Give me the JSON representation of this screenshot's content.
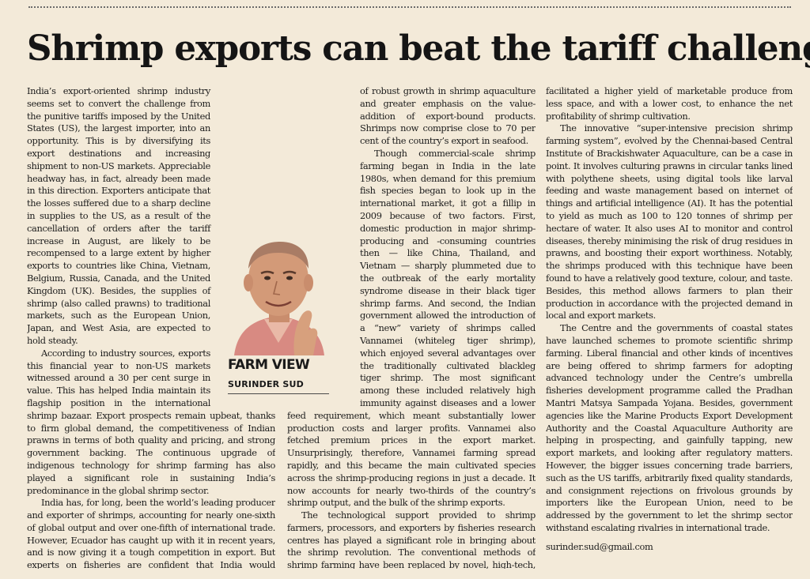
{
  "headline": "Shrimp exports can beat the tariff challenge",
  "column": {
    "name": "FARM VIEW",
    "author": "SURINDER SUD"
  },
  "col1": [
    "India’s export-oriented shrimp industry seems set to convert the challenge from the punitive tariffs imposed by the United States (US), the largest importer, into an opportunity. This is by diversifying its export destinations and increasing shipment to non-US markets. Appreciable headway has, in fact, already been made in this direction. Exporters anticipate that the losses suffered due to a sharp decline in supplies to the US, as a result of the cancellation of orders after the tariff increase in August, are likely to be recompensed to a large extent by higher exports to countries like China, Vietnam, Belgium, Russia, Canada, and the United Kingdom (UK). Besides, the supplies of shrimp (also called prawns) to traditional markets, such as the European Union, Japan, and West Asia, are expected to hold steady.",
    "According to industry sources, exports this financial year to non-US markets witnessed around a 30 per cent surge in value. This has helped India maintain its flagship position in the international shrimp bazaar. Export prospects remain upbeat, thanks to firm global demand, the competitiveness of Indian prawns in terms of both quality and pricing, and strong government backing. The continuous upgrade of indigenous technology for shrimp farming has also played a significant role in sustaining India’s predominance in the global shrimp sector.",
    "India has, for long, been the world’s leading producer and exporter of shrimps, accounting for nearly one-sixth of global output and over one-fifth of international trade. However, Ecuador has caught up with it in recent years, and is now giving it a tough competition in export. But experts on fisheries are confident that India would manage to regain top position, notwithstanding stagnation in marine catches, because"
  ],
  "col2": [
    "of robust growth in shrimp aquaculture and greater emphasis on the value-addition of export-bound products. Shrimps now comprise close to 70 per cent of the country’s export in seafood.",
    "Though commercial-scale shrimp farming began in India in the late 1980s, when demand for this premium fish species began to look up in the international market, it got a fillip in 2009 because of two factors. First, domestic production in major shrimp-producing and -consuming countries then — like China, Thailand, and Vietnam — sharply plummeted due to the outbreak of the early mortality syndrome disease in their black tiger shrimp farms. And second, the Indian government allowed the introduction of a “new” variety of shrimps called Vannamei (whiteleg tiger shrimp), which enjoyed several advantages over the traditionally cultivated blackleg tiger shrimp. The most significant among these included relatively high immunity against diseases and a lower feed requirement, which meant substantially lower production costs and larger profits. Vannamei also fetched premium prices in the export market. Unsurprisingly, therefore, Vannamei farming spread rapidly, and this became the main cultivated species across the shrimp-producing regions in just a decade. It now accounts for nearly two-thirds of the country’s shrimp output, and the bulk of the shrimp exports.",
    "The technological support provided to shrimp farmers, processors, and exporters by fisheries research centres has played a significant role in bringing about the shrimp revolution. The conventional methods of shrimp farming have been replaced by novel, high-tech, cost-effective, and sustainable shrimp-growing systems. These new techniques"
  ],
  "col3": [
    "facilitated a higher yield of marketable produce from less space, and with a lower cost, to enhance the net profitability of shrimp cultivation.",
    "The innovative “super-intensive precision shrimp farming system”, evolved by the Chennai-based Central Institute of Brackishwater Aquaculture, can be a case in point. It involves culturing prawns in circular tanks lined with polythene sheets, using digital tools like larval feeding and waste management based on internet of things and artificial intelligence (AI). It has the potential to yield as much as 100 to 120 tonnes of shrimp per hectare of water. It also uses AI to monitor and control diseases, thereby minimising the risk of drug residues in prawns, and boosting their export worthiness. Notably, the shrimps produced with this technique have been found to have a relatively good texture, colour, and taste. Besides, this method allows farmers to plan their production in accordance with the projected demand in local and export markets.",
    "The Centre and the governments of coastal states have launched schemes to promote scientific shrimp farming. Liberal financial and other kinds of incentives are being offered to shrimp farmers for adopting advanced technology under the Centre’s umbrella fisheries development programme called the Pradhan Mantri Matsya Sampada Yojana. Besides, government agencies like the Marine Products Export Development Authority and the Coastal Aquaculture Authority are helping in prospecting, and gainfully tapping, new export markets, and looking after regulatory matters. However, the bigger issues concerning trade barriers, such as the US tariffs, arbitrarily fixed quality standards, and consignment rejections on frivolous grounds by importers like the European Union, need to be addressed by the government to let the shrimp sector withstand escalating rivalries in international trade."
  ],
  "email": "surinder.sud@gmail.com"
}
